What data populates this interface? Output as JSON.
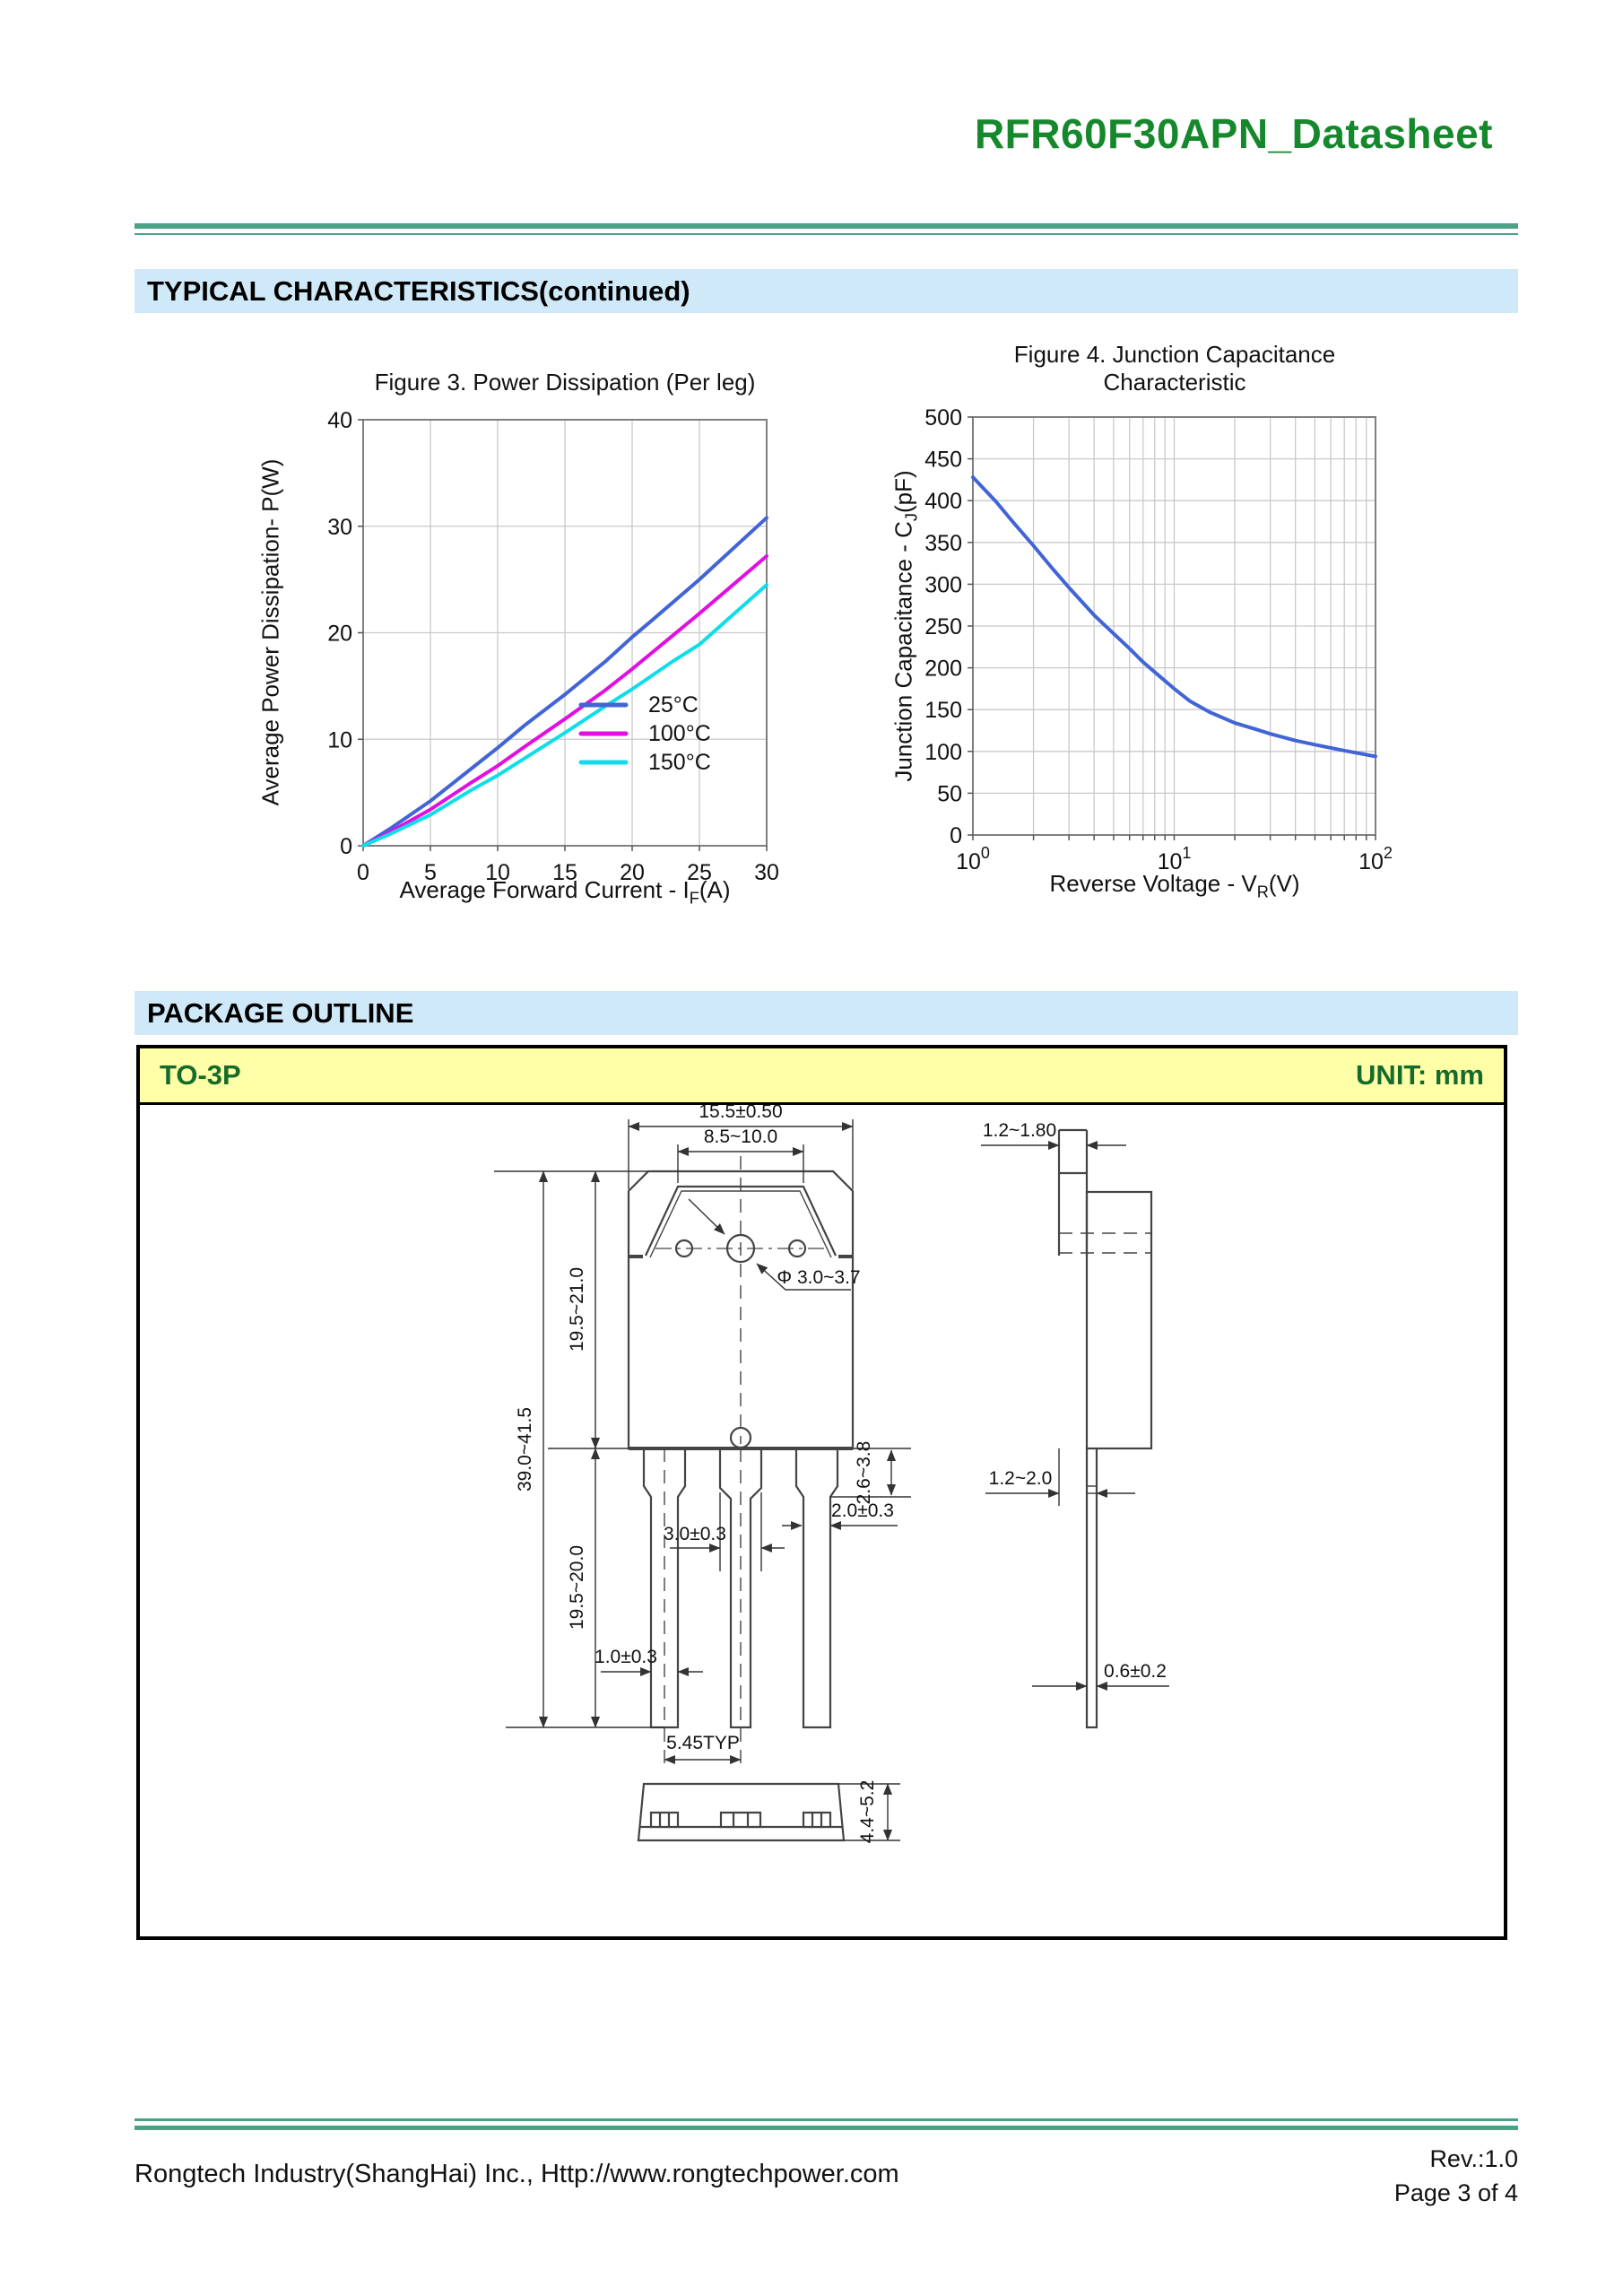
{
  "page": {
    "title": "RFR60F30APN_Datasheet",
    "footer": {
      "company": "Rongtech Industry(ShangHai) Inc., Http://www.rongtechpower.com",
      "rev": "Rev.:1.0",
      "page": "Page 3 of 4"
    }
  },
  "sections": {
    "typical": "TYPICAL CHARACTERISTICS(continued)",
    "package": "PACKAGE OUTLINE"
  },
  "package": {
    "type": "TO-3P",
    "unit": "UNIT: mm",
    "dims": {
      "top_width": "15.5±0.50",
      "tab_width": "8.5~10.0",
      "hole_dia": "Φ 3.0~3.7",
      "total_height": "39.0~41.5",
      "body_height": "19.5~21.0",
      "lead_length": "19.5~20.0",
      "shoulder_height": "2.6~3.8",
      "lead_width_a": "2.0±0.3",
      "lead_width_b": "3.0±0.3",
      "lead_width_tip": "1.0±0.3",
      "pitch": "5.45TYP",
      "base_height": "4.4~5.2",
      "tab_thickness": "1.2~1.80",
      "lead_offset": "1.2~2.0",
      "lead_thickness": "0.6±0.2"
    }
  },
  "colors": {
    "accent_green": "#15882c",
    "rule_green": "#4aa183",
    "section_blue": "#cfe9f8",
    "pkg_yellow": "#feffa6",
    "pkg_green_text": "#156b2b",
    "curve_blue": "#4164d6",
    "curve_magenta": "#e10fe1",
    "curve_cyan": "#0fdde9",
    "grid_gray": "#c9c9c9"
  },
  "chart_data": [
    {
      "type": "line",
      "title": "Figure 3. Power Dissipation (Per leg)",
      "xlabel": {
        "pre": "Average Forward Current - I",
        "sub": "F",
        "post": "(A)"
      },
      "ylabel": "Average Power Dissipation- P(W)",
      "xlim": [
        0,
        30
      ],
      "ylim": [
        0,
        40
      ],
      "xticks": [
        0,
        5,
        10,
        15,
        20,
        25,
        30
      ],
      "yticks": [
        0,
        10,
        20,
        30,
        40
      ],
      "grid": true,
      "legend_position": "inside lower-right",
      "series": [
        {
          "name": "25°C",
          "color": "#4164d6",
          "points": [
            [
              0,
              0
            ],
            [
              2,
              1.6
            ],
            [
              5,
              4.2
            ],
            [
              8,
              7.2
            ],
            [
              10,
              9.2
            ],
            [
              12,
              11.3
            ],
            [
              15,
              14.2
            ],
            [
              18,
              17.3
            ],
            [
              20,
              19.6
            ],
            [
              21.5,
              21.2
            ],
            [
              25,
              25.0
            ],
            [
              30,
              30.8
            ]
          ]
        },
        {
          "name": "100°C",
          "color": "#e10fe1",
          "points": [
            [
              0,
              0
            ],
            [
              2,
              1.3
            ],
            [
              5,
              3.4
            ],
            [
              8,
              5.9
            ],
            [
              10,
              7.5
            ],
            [
              12,
              9.3
            ],
            [
              15,
              11.9
            ],
            [
              18,
              14.6
            ],
            [
              20,
              16.6
            ],
            [
              25,
              21.8
            ],
            [
              30,
              27.2
            ]
          ]
        },
        {
          "name": "150°C",
          "color": "#0fdde9",
          "points": [
            [
              0,
              0
            ],
            [
              2,
              1.1
            ],
            [
              5,
              2.9
            ],
            [
              8,
              5.2
            ],
            [
              10,
              6.6
            ],
            [
              12,
              8.2
            ],
            [
              15,
              10.6
            ],
            [
              18,
              13.1
            ],
            [
              20,
              14.7
            ],
            [
              23,
              17.3
            ],
            [
              25,
              18.9
            ],
            [
              30,
              24.5
            ]
          ]
        }
      ]
    },
    {
      "type": "line",
      "title": [
        "Figure 4. Junction Capacitance",
        "Characteristic"
      ],
      "xlabel": {
        "pre": "Reverse Voltage - V",
        "sub": "R",
        "post": "(V)"
      },
      "ylabel": {
        "pre": "Junction Capacitance - C",
        "sub": "J",
        "post": "(pF)"
      },
      "xscale": "log",
      "xlim": [
        1,
        100
      ],
      "ylim": [
        0,
        500
      ],
      "xticks": [
        {
          "v": 1,
          "base": "10",
          "exp": "0"
        },
        {
          "v": 10,
          "base": "10",
          "exp": "1"
        },
        {
          "v": 100,
          "base": "10",
          "exp": "2"
        }
      ],
      "yticks": [
        0,
        50,
        100,
        150,
        200,
        250,
        300,
        350,
        400,
        450,
        500
      ],
      "grid": true,
      "series": [
        {
          "name": "CJ",
          "color": "#4164d6",
          "points": [
            [
              1,
              428
            ],
            [
              1.3,
              399
            ],
            [
              1.6,
              373
            ],
            [
              2,
              346
            ],
            [
              2.5,
              318
            ],
            [
              3,
              296
            ],
            [
              4,
              263
            ],
            [
              5,
              241
            ],
            [
              6,
              223
            ],
            [
              7,
              207
            ],
            [
              8,
              195
            ],
            [
              10,
              175
            ],
            [
              12,
              160
            ],
            [
              15,
              147
            ],
            [
              20,
              134
            ],
            [
              25,
              127
            ],
            [
              30,
              121
            ],
            [
              40,
              113
            ],
            [
              50,
              108
            ],
            [
              70,
              101
            ],
            [
              100,
              94
            ]
          ]
        }
      ]
    }
  ]
}
